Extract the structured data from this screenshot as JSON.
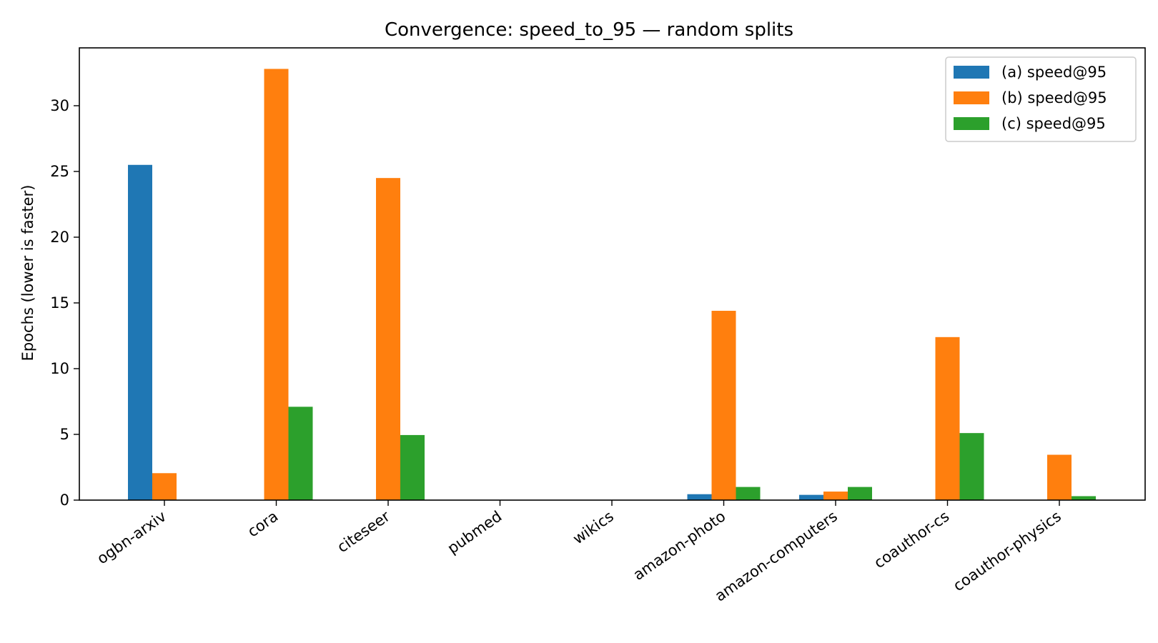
{
  "chart_data": {
    "type": "bar",
    "title": "Convergence: speed_to_95 — random splits",
    "xlabel": "",
    "ylabel": "Epochs (lower is faster)",
    "ylim": [
      0,
      34.4
    ],
    "yticks": [
      0,
      5,
      10,
      15,
      20,
      25,
      30
    ],
    "grid": false,
    "legend_position": "top-right",
    "categories": [
      "ogbn-arxiv",
      "cora",
      "citeseer",
      "pubmed",
      "wikics",
      "amazon-photo",
      "amazon-computers",
      "coauthor-cs",
      "coauthor-physics"
    ],
    "series": [
      {
        "name": "(a) speed@95",
        "color": "#1f77b4",
        "values": [
          25.5,
          0,
          0,
          0,
          0,
          0.45,
          0.4,
          0,
          0
        ]
      },
      {
        "name": "(b) speed@95",
        "color": "#ff7f0e",
        "values": [
          2.05,
          32.8,
          24.5,
          0,
          0,
          14.4,
          0.65,
          12.4,
          3.45
        ]
      },
      {
        "name": "(c) speed@95",
        "color": "#2ca02c",
        "values": [
          0,
          7.1,
          4.95,
          0,
          0,
          1.0,
          1.0,
          5.1,
          0.3
        ]
      }
    ]
  }
}
